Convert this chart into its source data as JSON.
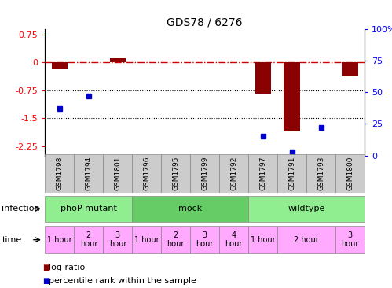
{
  "title": "GDS78 / 6276",
  "samples": [
    "GSM1798",
    "GSM1794",
    "GSM1801",
    "GSM1796",
    "GSM1795",
    "GSM1799",
    "GSM1792",
    "GSM1797",
    "GSM1791",
    "GSM1793",
    "GSM1800"
  ],
  "log_ratio": [
    -0.18,
    null,
    0.12,
    null,
    null,
    null,
    null,
    -0.85,
    -1.85,
    null,
    -0.38
  ],
  "percentile_rank": [
    37,
    47,
    null,
    null,
    null,
    null,
    null,
    15,
    3,
    22,
    null
  ],
  "infection_groups": [
    {
      "label": "phoP mutant",
      "start": 0,
      "end": 3
    },
    {
      "label": "mock",
      "start": 3,
      "end": 7
    },
    {
      "label": "wildtype",
      "start": 7,
      "end": 11
    }
  ],
  "time_cells": [
    {
      "start": 0,
      "end": 1,
      "label": "1 hour"
    },
    {
      "start": 1,
      "end": 2,
      "label": "2\nhour"
    },
    {
      "start": 2,
      "end": 3,
      "label": "3\nhour"
    },
    {
      "start": 3,
      "end": 4,
      "label": "1 hour"
    },
    {
      "start": 4,
      "end": 5,
      "label": "2\nhour"
    },
    {
      "start": 5,
      "end": 6,
      "label": "3\nhour"
    },
    {
      "start": 6,
      "end": 7,
      "label": "4\nhour"
    },
    {
      "start": 7,
      "end": 8,
      "label": "1 hour"
    },
    {
      "start": 8,
      "end": 10,
      "label": "2 hour"
    },
    {
      "start": 10,
      "end": 11,
      "label": "3\nhour"
    }
  ],
  "ylim_left": [
    -2.5,
    0.9
  ],
  "ylim_right": [
    0,
    100
  ],
  "yticks_left": [
    -2.25,
    -1.5,
    -0.75,
    0,
    0.75
  ],
  "yticks_right": [
    0,
    25,
    50,
    75,
    100
  ],
  "bar_color": "#8B0000",
  "dot_color": "#0000CD",
  "dotted_lines": [
    -0.75,
    -1.5
  ],
  "inf_color": "#90ee90",
  "inf_color_dark": "#66cc66",
  "time_color": "#ffaaff",
  "sample_bg": "#cccccc",
  "infection_label": "infection",
  "time_label": "time",
  "legend_log": "log ratio",
  "legend_pct": "percentile rank within the sample"
}
